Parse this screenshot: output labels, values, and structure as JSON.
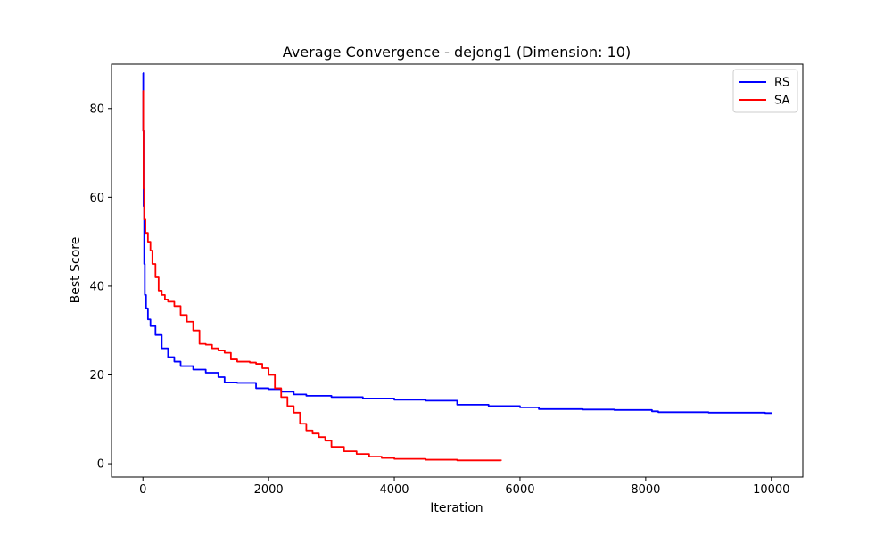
{
  "chart_data": {
    "type": "line",
    "title": "Average Convergence - dejong1 (Dimension: 10)",
    "xlabel": "Iteration",
    "ylabel": "Best Score",
    "xlim": [
      -500,
      10500
    ],
    "ylim": [
      -3,
      90
    ],
    "xticks": [
      "0",
      "2000",
      "4000",
      "6000",
      "8000",
      "10000"
    ],
    "xtick_values": [
      0,
      2000,
      4000,
      6000,
      8000,
      10000
    ],
    "yticks": [
      "0",
      "20",
      "40",
      "60",
      "80"
    ],
    "ytick_values": [
      0,
      20,
      40,
      60,
      80
    ],
    "grid": false,
    "legend_position": "top-right",
    "series": [
      {
        "name": "RS",
        "color": "#0000ff",
        "points": [
          [
            0,
            88
          ],
          [
            5,
            75
          ],
          [
            10,
            58
          ],
          [
            20,
            45
          ],
          [
            30,
            38
          ],
          [
            50,
            35
          ],
          [
            80,
            32.5
          ],
          [
            120,
            31
          ],
          [
            200,
            29
          ],
          [
            300,
            26
          ],
          [
            400,
            24
          ],
          [
            500,
            23
          ],
          [
            600,
            22
          ],
          [
            800,
            21.2
          ],
          [
            1000,
            20.5
          ],
          [
            1200,
            19.5
          ],
          [
            1300,
            18.3
          ],
          [
            1500,
            18.2
          ],
          [
            1800,
            17
          ],
          [
            2000,
            16.8
          ],
          [
            2200,
            16.2
          ],
          [
            2400,
            15.6
          ],
          [
            2600,
            15.3
          ],
          [
            3000,
            15
          ],
          [
            3500,
            14.7
          ],
          [
            4000,
            14.4
          ],
          [
            4500,
            14.2
          ],
          [
            5000,
            13.3
          ],
          [
            5500,
            13
          ],
          [
            6000,
            12.7
          ],
          [
            6300,
            12.3
          ],
          [
            7000,
            12.2
          ],
          [
            7500,
            12.1
          ],
          [
            8100,
            11.8
          ],
          [
            8200,
            11.6
          ],
          [
            9000,
            11.5
          ],
          [
            9900,
            11.4
          ],
          [
            10000,
            11.2
          ]
        ]
      },
      {
        "name": "SA",
        "color": "#ff0000",
        "points": [
          [
            0,
            84
          ],
          [
            5,
            75
          ],
          [
            10,
            62
          ],
          [
            20,
            55
          ],
          [
            40,
            52
          ],
          [
            80,
            50
          ],
          [
            120,
            48
          ],
          [
            150,
            45
          ],
          [
            200,
            42
          ],
          [
            250,
            39
          ],
          [
            300,
            38
          ],
          [
            350,
            37
          ],
          [
            400,
            36.5
          ],
          [
            500,
            35.5
          ],
          [
            600,
            33.5
          ],
          [
            700,
            32
          ],
          [
            800,
            30
          ],
          [
            900,
            27
          ],
          [
            1000,
            26.8
          ],
          [
            1100,
            26
          ],
          [
            1200,
            25.5
          ],
          [
            1300,
            25
          ],
          [
            1400,
            23.5
          ],
          [
            1500,
            23
          ],
          [
            1700,
            22.8
          ],
          [
            1800,
            22.5
          ],
          [
            1900,
            21.5
          ],
          [
            2000,
            20
          ],
          [
            2100,
            17
          ],
          [
            2200,
            15
          ],
          [
            2300,
            13
          ],
          [
            2400,
            11.5
          ],
          [
            2500,
            9
          ],
          [
            2600,
            7.5
          ],
          [
            2700,
            6.8
          ],
          [
            2800,
            6
          ],
          [
            2900,
            5.2
          ],
          [
            3000,
            3.8
          ],
          [
            3200,
            2.8
          ],
          [
            3400,
            2.2
          ],
          [
            3600,
            1.6
          ],
          [
            3800,
            1.3
          ],
          [
            4000,
            1.1
          ],
          [
            4500,
            0.9
          ],
          [
            5000,
            0.75
          ],
          [
            5700,
            0.7
          ]
        ]
      }
    ]
  }
}
